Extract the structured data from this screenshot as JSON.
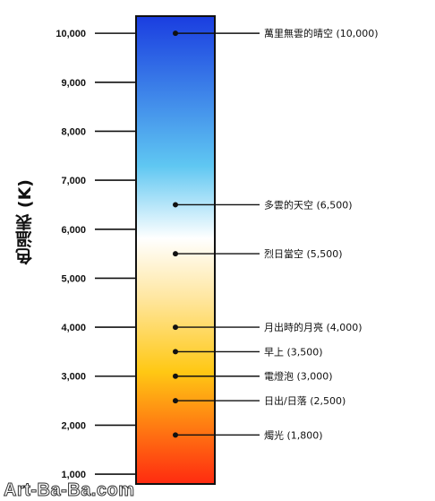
{
  "axis_title": "色溫表 (K)",
  "watermark": "Art-Ba-Ba.com",
  "colors": {
    "gradient_top": "#1a3de0",
    "gradient_sky": "#5fc7f2",
    "gradient_white": "#ffffff",
    "gradient_amber": "#ffc814",
    "gradient_bottom": "#ff2a10",
    "bar_border": "#111111"
  },
  "chart_data": {
    "type": "color-temperature-scale",
    "ylim": [
      800,
      10350
    ],
    "ticks": [
      {
        "value": 10000,
        "label": "10,000"
      },
      {
        "value": 9000,
        "label": "9,000"
      },
      {
        "value": 8000,
        "label": "8,000"
      },
      {
        "value": 7000,
        "label": "7,000"
      },
      {
        "value": 6000,
        "label": "6,000"
      },
      {
        "value": 5000,
        "label": "5,000"
      },
      {
        "value": 4000,
        "label": "4,000"
      },
      {
        "value": 3000,
        "label": "3,000"
      },
      {
        "value": 2000,
        "label": "2,000"
      },
      {
        "value": 1000,
        "label": "1,000"
      }
    ],
    "annotations": [
      {
        "value": 10000,
        "label": "萬里無雲的晴空 (10,000)"
      },
      {
        "value": 6500,
        "label": "多雲的天空 (6,500)"
      },
      {
        "value": 5500,
        "label": "烈日當空 (5,500)"
      },
      {
        "value": 4000,
        "label": "月出時的月亮 (4,000)"
      },
      {
        "value": 3500,
        "label": "早上 (3,500)"
      },
      {
        "value": 3000,
        "label": "電燈泡 (3,000)"
      },
      {
        "value": 2500,
        "label": "日出/日落 (2,500)"
      },
      {
        "value": 1800,
        "label": "燭光 (1,800)"
      }
    ]
  }
}
